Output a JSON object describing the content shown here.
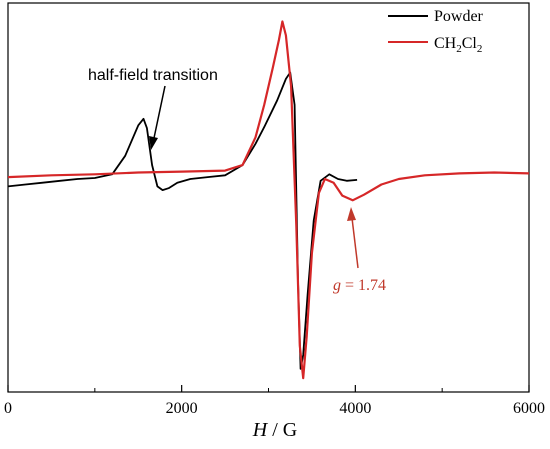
{
  "chart_data": {
    "type": "line",
    "title": "",
    "xlabel_var": "H",
    "xlabel_unit": " / G",
    "ylabel": "",
    "xlim": [
      0,
      6000
    ],
    "x_ticks": [
      0,
      2000,
      4000,
      6000
    ],
    "x_minor_ticks": [
      1000,
      3000,
      5000
    ],
    "y_ticks_shown": false,
    "grid": false,
    "legend": {
      "placement": "top-right",
      "entries": [
        {
          "label": "Powder",
          "color": "#000000"
        },
        {
          "label_main": "CH",
          "label_sub1": "2",
          "label_mid": "Cl",
          "label_sub2": "2",
          "color": "#d62728"
        }
      ]
    },
    "annotations": {
      "half_field": {
        "text": "half-field transition",
        "points_to_x": 1660
      },
      "g_value": {
        "var": "g",
        "text": " = 1.74",
        "points_to_x": 3970
      }
    },
    "series": [
      {
        "name": "Powder",
        "color": "#000000",
        "points": [
          [
            0,
            -0.18
          ],
          [
            200,
            -0.16
          ],
          [
            400,
            -0.14
          ],
          [
            600,
            -0.12
          ],
          [
            800,
            -0.1
          ],
          [
            1000,
            -0.09
          ],
          [
            1200,
            -0.05
          ],
          [
            1350,
            0.15
          ],
          [
            1500,
            0.48
          ],
          [
            1560,
            0.55
          ],
          [
            1600,
            0.45
          ],
          [
            1660,
            0.05
          ],
          [
            1720,
            -0.18
          ],
          [
            1780,
            -0.22
          ],
          [
            1850,
            -0.2
          ],
          [
            1950,
            -0.14
          ],
          [
            2100,
            -0.1
          ],
          [
            2300,
            -0.08
          ],
          [
            2500,
            -0.06
          ],
          [
            2700,
            0.05
          ],
          [
            2850,
            0.28
          ],
          [
            2950,
            0.46
          ],
          [
            3100,
            0.75
          ],
          [
            3200,
            0.98
          ],
          [
            3250,
            1.05
          ],
          [
            3300,
            0.7
          ],
          [
            3340,
            -1.2
          ],
          [
            3370,
            -2.15
          ],
          [
            3400,
            -2.0
          ],
          [
            3450,
            -1.35
          ],
          [
            3520,
            -0.55
          ],
          [
            3600,
            -0.12
          ],
          [
            3700,
            -0.05
          ],
          [
            3800,
            -0.1
          ],
          [
            3900,
            -0.12
          ],
          [
            4020,
            -0.11
          ]
        ]
      },
      {
        "name": "CH2Cl2",
        "color": "#d62728",
        "points": [
          [
            0,
            -0.08
          ],
          [
            500,
            -0.06
          ],
          [
            1000,
            -0.05
          ],
          [
            1500,
            -0.03
          ],
          [
            2000,
            -0.02
          ],
          [
            2500,
            -0.01
          ],
          [
            2700,
            0.05
          ],
          [
            2850,
            0.35
          ],
          [
            2950,
            0.7
          ],
          [
            3050,
            1.1
          ],
          [
            3120,
            1.4
          ],
          [
            3160,
            1.6
          ],
          [
            3200,
            1.45
          ],
          [
            3260,
            0.9
          ],
          [
            3320,
            -0.6
          ],
          [
            3360,
            -1.9
          ],
          [
            3400,
            -2.25
          ],
          [
            3440,
            -1.8
          ],
          [
            3500,
            -0.9
          ],
          [
            3580,
            -0.25
          ],
          [
            3650,
            -0.1
          ],
          [
            3750,
            -0.14
          ],
          [
            3850,
            -0.28
          ],
          [
            3970,
            -0.33
          ],
          [
            4100,
            -0.27
          ],
          [
            4300,
            -0.16
          ],
          [
            4500,
            -0.1
          ],
          [
            4800,
            -0.06
          ],
          [
            5200,
            -0.04
          ],
          [
            5600,
            -0.03
          ],
          [
            6000,
            -0.04
          ]
        ]
      }
    ]
  }
}
